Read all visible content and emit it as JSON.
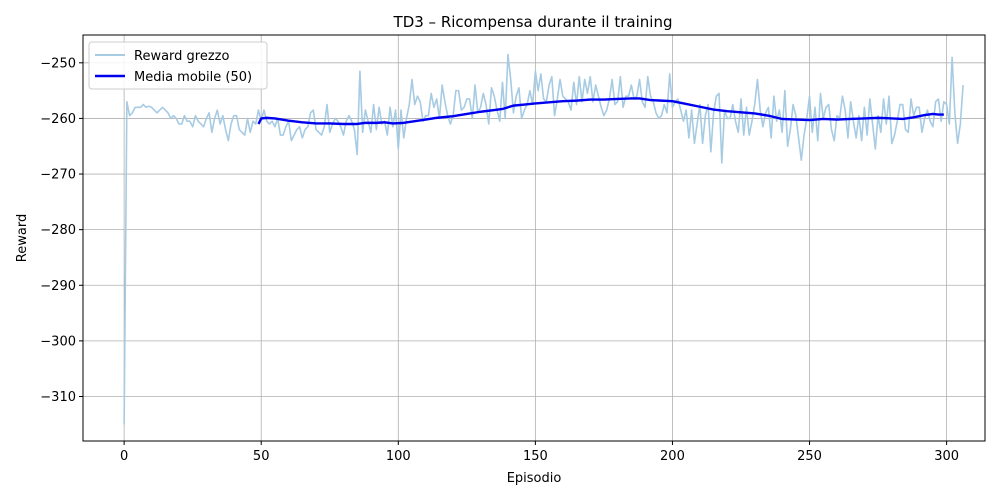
{
  "chart_data": {
    "type": "line",
    "title": "TD3 – Ricompensa durante il training",
    "xlabel": "Episodio",
    "ylabel": "Reward",
    "xlim": [
      -15,
      314
    ],
    "ylim": [
      -318,
      -245
    ],
    "xticks": [
      0,
      50,
      100,
      150,
      200,
      250,
      300
    ],
    "yticks": [
      -310,
      -300,
      -290,
      -280,
      -270,
      -260,
      -250
    ],
    "grid": true,
    "legend_position": "top-left",
    "series": [
      {
        "name": "Reward grezzo",
        "color": "#a6cbe3",
        "x_start": 0,
        "values": [
          -315,
          -257,
          -259.5,
          -259,
          -258,
          -258,
          -258,
          -257.5,
          -258,
          -257.8,
          -258,
          -258.5,
          -259,
          -258.5,
          -258,
          -258.5,
          -259,
          -260,
          -259.5,
          -260,
          -261,
          -261,
          -259.5,
          -260.5,
          -260.5,
          -261.5,
          -259.5,
          -260.5,
          -261,
          -261.5,
          -260,
          -259,
          -262.5,
          -260,
          -258.5,
          -261,
          -259.5,
          -262,
          -264,
          -261,
          -259.5,
          -259.5,
          -262,
          -262.5,
          -263,
          -260,
          -262.5,
          -260.5,
          -261,
          -258.5,
          -260.5,
          -258.5,
          -260.5,
          -261,
          -260.5,
          -261.5,
          -260,
          -263,
          -263,
          -261.5,
          -260.5,
          -264,
          -263,
          -262,
          -261.5,
          -263.5,
          -262,
          -261.5,
          -259,
          -258.5,
          -262,
          -262.5,
          -263,
          -261.5,
          -257.5,
          -262.5,
          -261,
          -260,
          -260.5,
          -261.5,
          -263,
          -260.5,
          -259.5,
          -260.5,
          -262,
          -266.5,
          -251.5,
          -262.5,
          -258.5,
          -260.5,
          -262.5,
          -257.5,
          -262,
          -258,
          -261,
          -260.5,
          -263,
          -258,
          -261.5,
          -258.5,
          -265.5,
          -258.5,
          -263.5,
          -260,
          -257.5,
          -253,
          -257.5,
          -256,
          -257,
          -260.5,
          -259.5,
          -259.5,
          -255.5,
          -258,
          -256.5,
          -260,
          -254,
          -257,
          -259.5,
          -261,
          -259.5,
          -255,
          -255,
          -258.5,
          -258,
          -256.5,
          -256.5,
          -260,
          -254,
          -259,
          -258,
          -255.5,
          -257.5,
          -261,
          -254.5,
          -256,
          -258.5,
          -260.5,
          -253.5,
          -260,
          -248.5,
          -253,
          -259,
          -256,
          -254.5,
          -260,
          -258.5,
          -257.5,
          -255,
          -257.5,
          -251.5,
          -255,
          -252,
          -256.5,
          -257,
          -254,
          -252.5,
          -259.5,
          -256.5,
          -253,
          -256,
          -256.5,
          -257,
          -258.5,
          -253.5,
          -257.5,
          -252.5,
          -257,
          -253,
          -255.5,
          -252.5,
          -257,
          -254,
          -256,
          -258,
          -259.5,
          -258.5,
          -256.5,
          -253,
          -257.5,
          -257,
          -252.5,
          -258,
          -256,
          -256,
          -254,
          -256.5,
          -256,
          -253,
          -257,
          -258,
          -252.5,
          -256,
          -257,
          -259,
          -260,
          -259.5,
          -257.5,
          -259,
          -252,
          -258,
          -257,
          -256.5,
          -258.5,
          -260.5,
          -258.5,
          -263.5,
          -258.5,
          -264.5,
          -261,
          -257.5,
          -264.5,
          -259.5,
          -257.5,
          -266,
          -259,
          -256,
          -255.5,
          -268,
          -258.5,
          -260,
          -260,
          -257.5,
          -260.5,
          -262.5,
          -256.5,
          -263,
          -258,
          -263,
          -260.5,
          -257.5,
          -253,
          -258.5,
          -261.5,
          -259,
          -258,
          -263.5,
          -256,
          -260.5,
          -258.5,
          -262.5,
          -255,
          -265,
          -262,
          -257.5,
          -259.5,
          -263.5,
          -267.5,
          -263,
          -260,
          -256,
          -262.5,
          -258,
          -264,
          -255.5,
          -260,
          -258,
          -257.5,
          -262,
          -264,
          -259.5,
          -260,
          -256,
          -258.5,
          -263.5,
          -257,
          -260.5,
          -263.5,
          -259.5,
          -264,
          -258,
          -263,
          -256.5,
          -261,
          -265.5,
          -259.5,
          -262.5,
          -256.5,
          -261,
          -256,
          -264.5,
          -263,
          -260.5,
          -257.5,
          -257.5,
          -262,
          -262.5,
          -256.5,
          -259.5,
          -258,
          -258,
          -262.5,
          -260,
          -258.5,
          -260.5,
          -261.5,
          -257,
          -256.5,
          -260.5,
          -257,
          -257.5,
          -261,
          -249,
          -259,
          -264.5,
          -261,
          -254
        ]
      },
      {
        "name": "Media mobile (50)",
        "color": "#0000ee",
        "points": [
          [
            49,
            -261
          ],
          [
            50,
            -260
          ],
          [
            52,
            -259.9
          ],
          [
            55,
            -260
          ],
          [
            60,
            -260.4
          ],
          [
            65,
            -260.7
          ],
          [
            70,
            -260.9
          ],
          [
            75,
            -260.9
          ],
          [
            80,
            -261
          ],
          [
            85,
            -261
          ],
          [
            88,
            -260.8
          ],
          [
            92,
            -260.8
          ],
          [
            95,
            -260.7
          ],
          [
            98,
            -260.9
          ],
          [
            102,
            -260.8
          ],
          [
            106,
            -260.5
          ],
          [
            110,
            -260.2
          ],
          [
            114,
            -259.9
          ],
          [
            120,
            -259.6
          ],
          [
            125,
            -259.2
          ],
          [
            130,
            -258.8
          ],
          [
            135,
            -258.5
          ],
          [
            138,
            -258.3
          ],
          [
            142,
            -257.7
          ],
          [
            146,
            -257.5
          ],
          [
            150,
            -257.3
          ],
          [
            155,
            -257.1
          ],
          [
            160,
            -256.9
          ],
          [
            165,
            -256.8
          ],
          [
            170,
            -256.6
          ],
          [
            175,
            -256.6
          ],
          [
            180,
            -256.5
          ],
          [
            185,
            -256.4
          ],
          [
            188,
            -256.4
          ],
          [
            192,
            -256.7
          ],
          [
            196,
            -256.8
          ],
          [
            200,
            -256.9
          ],
          [
            205,
            -257.4
          ],
          [
            210,
            -257.9
          ],
          [
            215,
            -258.4
          ],
          [
            220,
            -258.7
          ],
          [
            225,
            -258.9
          ],
          [
            230,
            -259.1
          ],
          [
            235,
            -259.5
          ],
          [
            240,
            -260.1
          ],
          [
            245,
            -260.2
          ],
          [
            250,
            -260.3
          ],
          [
            255,
            -260.1
          ],
          [
            260,
            -260.2
          ],
          [
            265,
            -260.1
          ],
          [
            270,
            -260
          ],
          [
            275,
            -259.9
          ],
          [
            280,
            -260
          ],
          [
            284,
            -260.1
          ],
          [
            288,
            -259.8
          ],
          [
            292,
            -259.4
          ],
          [
            295,
            -259.2
          ],
          [
            297,
            -259.3
          ],
          [
            299,
            -259.3
          ]
        ]
      }
    ]
  }
}
